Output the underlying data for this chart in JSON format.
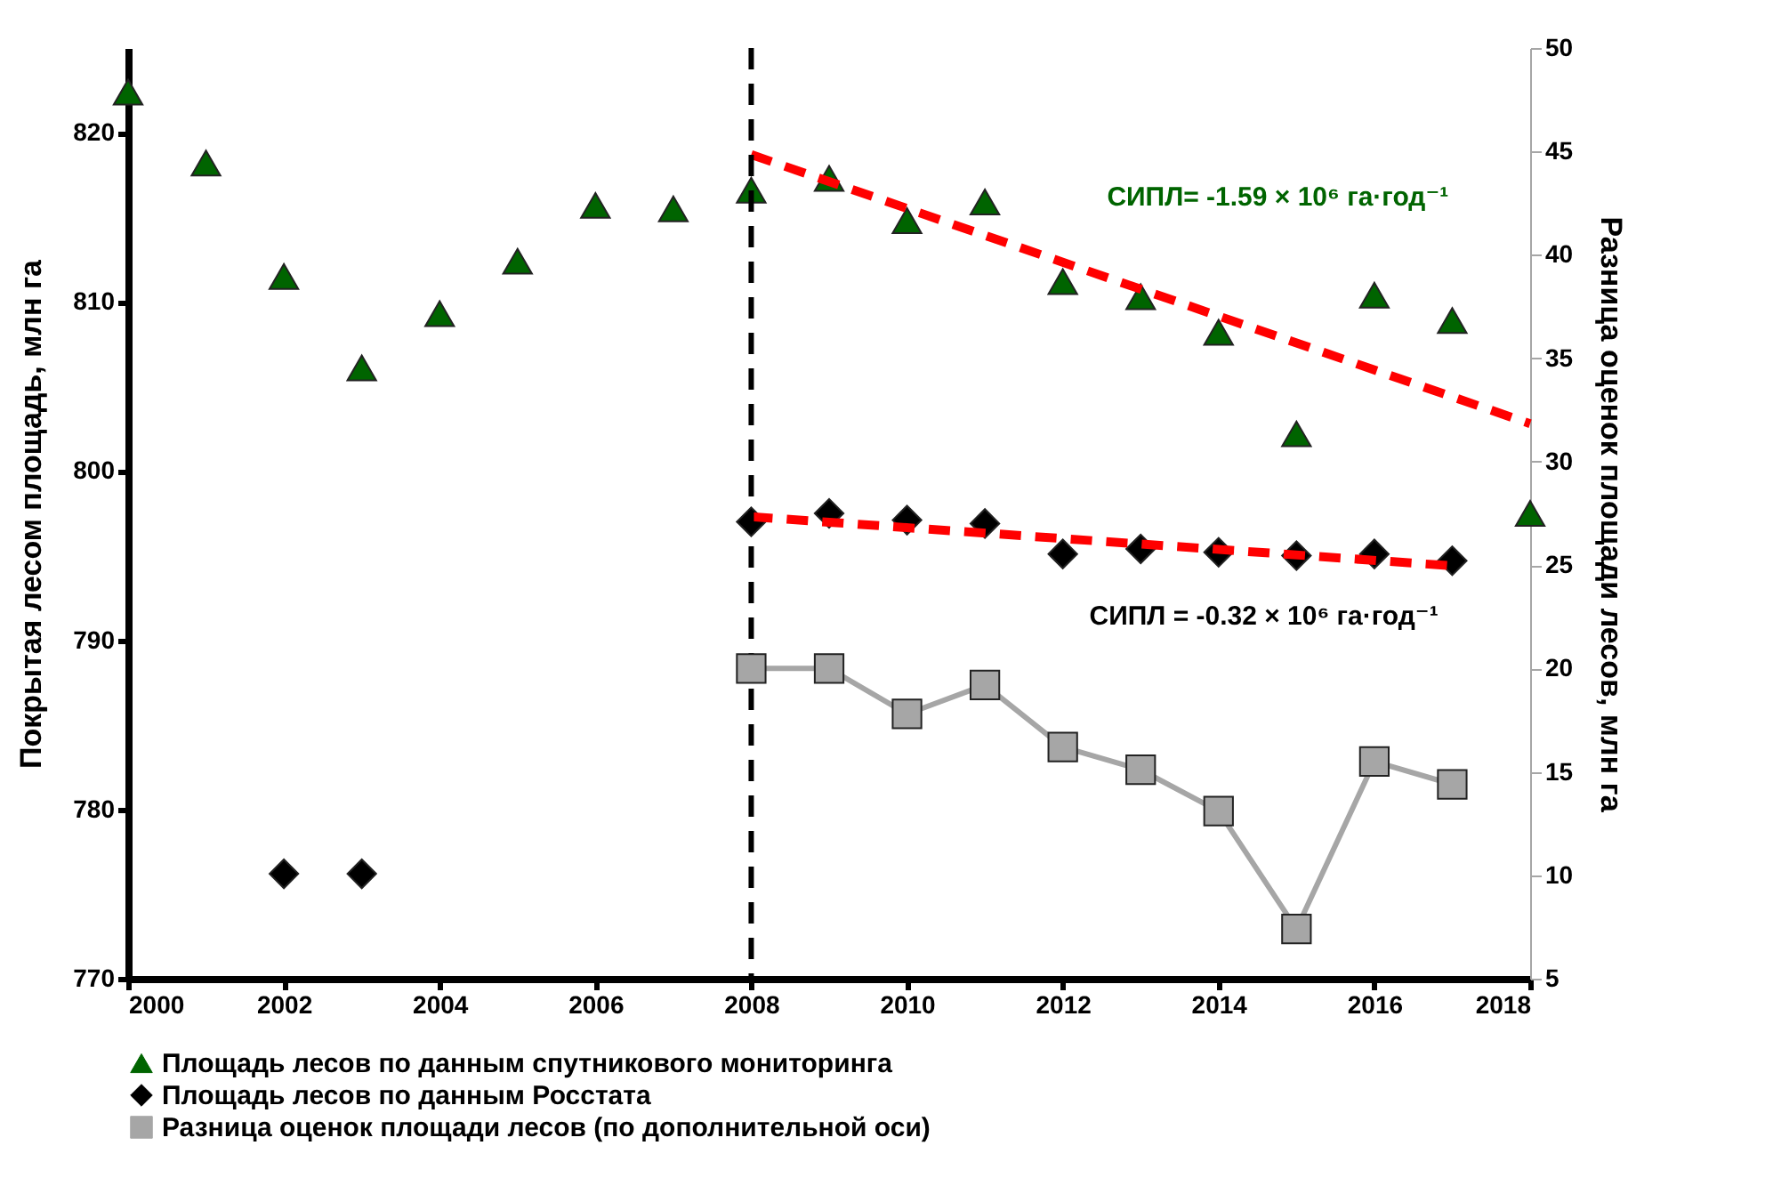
{
  "chart_data": {
    "type": "scatter",
    "xlim": [
      2000,
      2018
    ],
    "xticks": [
      2000,
      2002,
      2004,
      2006,
      2008,
      2010,
      2012,
      2014,
      2016,
      2018
    ],
    "ylim": [
      770,
      825
    ],
    "yticks": [
      770,
      780,
      790,
      800,
      810,
      820
    ],
    "y2lim": [
      5,
      50
    ],
    "y2ticks": [
      5,
      10,
      15,
      20,
      25,
      30,
      35,
      40,
      45,
      50
    ],
    "ylabel": "Покрытая лесом площадь, млн га",
    "y2label": "Разница оценок площади лесов, млн га",
    "legend": "bottom",
    "grid": false,
    "ref_lines": [
      {
        "axis": "x",
        "value": 2008,
        "color": "#000000",
        "line_style": "dashed"
      }
    ],
    "annotations": [
      "СИПЛ= -1.59 × 10⁶ га·год⁻¹",
      "СИПЛ = -0.32 × 10⁶ га·год⁻¹"
    ],
    "series": [
      {
        "name": "Площадь лесов по данным спутникового мониторинга",
        "type": "scatter",
        "marker": "triangle",
        "color": "#006400",
        "x": [
          2000,
          2001,
          2002,
          2003,
          2004,
          2005,
          2006,
          2007,
          2008,
          2009,
          2010,
          2011,
          2012,
          2013,
          2014,
          2015,
          2016,
          2017,
          2018
        ],
        "values": [
          822.4,
          818.2,
          811.5,
          806.1,
          809.3,
          812.4,
          815.7,
          815.5,
          816.6,
          817.3,
          814.8,
          815.9,
          811.2,
          810.3,
          808.2,
          802.2,
          810.4,
          808.9,
          797.5
        ]
      },
      {
        "name": "Площадь лесов по данным Росстата",
        "type": "scatter",
        "marker": "diamond",
        "color": "#000000",
        "x": [
          2002,
          2003,
          2008,
          2009,
          2010,
          2011,
          2012,
          2013,
          2014,
          2015,
          2016,
          2017
        ],
        "values": [
          776.2,
          776.2,
          797.0,
          797.5,
          797.1,
          796.9,
          795.1,
          795.4,
          795.2,
          795.0,
          795.1,
          794.7
        ]
      },
      {
        "name": "Разница оценок площади лесов (по дополнительной оси)",
        "type": "line",
        "axis": "y2",
        "marker": "square",
        "color": "#a6a6a6",
        "x": [
          2008,
          2009,
          2010,
          2011,
          2012,
          2013,
          2014,
          2015,
          2016,
          2017
        ],
        "values": [
          20.0,
          20.0,
          17.8,
          19.2,
          16.2,
          15.1,
          13.1,
          7.4,
          15.5,
          14.4
        ]
      },
      {
        "type": "line",
        "marker": "none",
        "line_style": "dashed",
        "color": "#ff0000",
        "x": [
          2008,
          2018
        ],
        "values": [
          818.7,
          802.8
        ]
      },
      {
        "type": "line",
        "marker": "none",
        "line_style": "dashed",
        "color": "#ff0000",
        "x": [
          2008,
          2017
        ],
        "values": [
          797.3,
          794.4
        ]
      }
    ]
  }
}
